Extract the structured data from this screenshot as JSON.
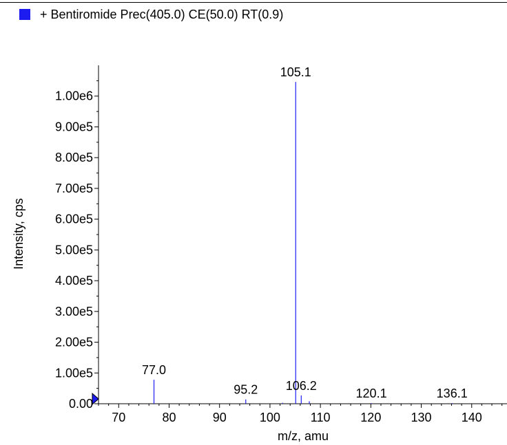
{
  "legend": {
    "label": "+ Bentiromide Prec(405.0) CE(50.0) RT(0.9)",
    "swatch_color": "#1c1cf0"
  },
  "chart_data": {
    "type": "bar",
    "subtype": "mass-spectrum-stick",
    "xlabel": "m/z, amu",
    "ylabel": "Intensity, cps",
    "xlim": [
      66,
      147
    ],
    "ylim": [
      0,
      1100000
    ],
    "x_ticks": [
      70,
      80,
      90,
      100,
      110,
      120,
      130,
      140
    ],
    "y_ticks": [
      {
        "value": 0,
        "label": "0.00"
      },
      {
        "value": 100000,
        "label": "1.00e5"
      },
      {
        "value": 200000,
        "label": "2.00e5"
      },
      {
        "value": 300000,
        "label": "3.00e5"
      },
      {
        "value": 400000,
        "label": "4.00e5"
      },
      {
        "value": 500000,
        "label": "5.00e5"
      },
      {
        "value": 600000,
        "label": "6.00e5"
      },
      {
        "value": 700000,
        "label": "7.00e5"
      },
      {
        "value": 800000,
        "label": "8.00e5"
      },
      {
        "value": 900000,
        "label": "9.00e5"
      },
      {
        "value": 1000000,
        "label": "1.00e6"
      }
    ],
    "series_color": "#1c1cf0",
    "peaks": [
      {
        "mz": 77.0,
        "intensity": 78000,
        "label": "77.0"
      },
      {
        "mz": 95.2,
        "intensity": 14000,
        "label": "95.2"
      },
      {
        "mz": 105.1,
        "intensity": 1046000,
        "label": "105.1"
      },
      {
        "mz": 106.2,
        "intensity": 27000,
        "label": "106.2"
      },
      {
        "mz": 107.8,
        "intensity": 8000,
        "label": ""
      },
      {
        "mz": 102.5,
        "intensity": 3000,
        "label": ""
      },
      {
        "mz": 120.1,
        "intensity": 2000,
        "label": "120.1"
      },
      {
        "mz": 136.1,
        "intensity": 2000,
        "label": "136.1"
      }
    ]
  }
}
